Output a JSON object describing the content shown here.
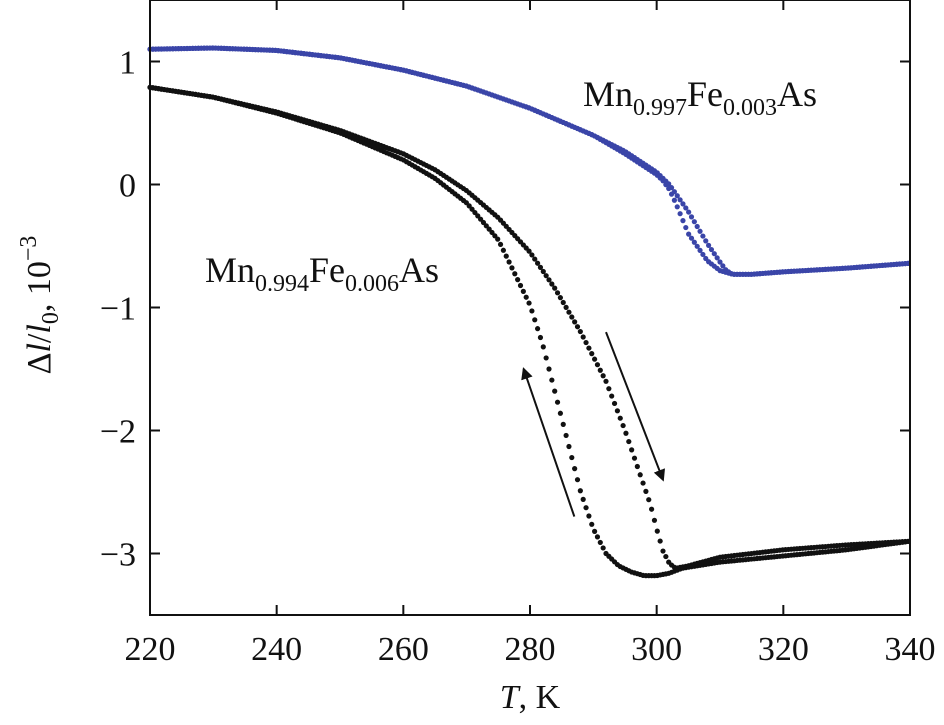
{
  "chart_data": {
    "type": "scatter",
    "xlabel_italic": "T",
    "xlabel_rest": ", K",
    "ylabel_parts": [
      "Δ",
      "l",
      "/",
      "l",
      "0",
      ", 10",
      "−3"
    ],
    "xlim": [
      220,
      340
    ],
    "ylim": [
      -3.5,
      1.5
    ],
    "xticks": [
      220,
      240,
      260,
      280,
      300,
      320,
      340
    ],
    "yticks": [
      1,
      0,
      -1,
      -2,
      -3
    ],
    "ytick_labels": [
      "1",
      "0",
      "−1",
      "−2",
      "−3"
    ],
    "grid": false,
    "colors": {
      "blue": "#3a45a8",
      "black": "#111111"
    },
    "series": [
      {
        "label_parts": [
          "Mn",
          "0.997",
          "Fe",
          "0.003",
          "As"
        ],
        "color": "#3a45a8",
        "branches": [
          {
            "x": [
              220,
              230,
              240,
              250,
              260,
              270,
              280,
              290,
              295,
              300,
              301,
              302,
              303,
              305,
              308,
              310,
              312,
              315,
              320,
              330,
              340
            ],
            "y": [
              1.1,
              1.11,
              1.09,
              1.03,
              0.93,
              0.8,
              0.62,
              0.4,
              0.25,
              0.08,
              0.03,
              -0.04,
              -0.15,
              -0.4,
              -0.62,
              -0.7,
              -0.73,
              -0.73,
              -0.71,
              -0.68,
              -0.64
            ]
          },
          {
            "x": [
              220,
              230,
              240,
              250,
              260,
              270,
              280,
              290,
              295,
              300,
              302,
              305,
              308,
              310,
              311,
              312,
              315,
              320,
              330,
              340
            ],
            "y": [
              1.1,
              1.11,
              1.09,
              1.03,
              0.93,
              0.8,
              0.62,
              0.4,
              0.27,
              0.1,
              0.0,
              -0.22,
              -0.48,
              -0.63,
              -0.7,
              -0.73,
              -0.73,
              -0.71,
              -0.68,
              -0.64
            ]
          }
        ]
      },
      {
        "label_parts": [
          "Mn",
          "0.994",
          "Fe",
          "0.006",
          "As"
        ],
        "color": "#111111",
        "branches": [
          {
            "x": [
              220,
              230,
              240,
              250,
              260,
              265,
              270,
              275,
              280,
              282,
              284,
              286,
              288,
              290,
              292,
              294,
              296,
              298,
              300,
              302,
              304,
              310,
              320,
              330,
              340
            ],
            "y": [
              0.79,
              0.71,
              0.58,
              0.42,
              0.2,
              0.05,
              -0.15,
              -0.45,
              -0.98,
              -1.3,
              -1.7,
              -2.1,
              -2.5,
              -2.8,
              -3.0,
              -3.1,
              -3.15,
              -3.18,
              -3.18,
              -3.16,
              -3.12,
              -3.07,
              -3.02,
              -2.97,
              -2.9
            ]
          },
          {
            "x": [
              220,
              230,
              240,
              250,
              260,
              265,
              270,
              275,
              280,
              284,
              288,
              292,
              295,
              297,
              299,
              300,
              301,
              302,
              303,
              305,
              310,
              320,
              330,
              340
            ],
            "y": [
              0.79,
              0.71,
              0.59,
              0.44,
              0.25,
              0.12,
              -0.05,
              -0.27,
              -0.55,
              -0.85,
              -1.2,
              -1.6,
              -2.0,
              -2.3,
              -2.6,
              -2.8,
              -2.98,
              -3.08,
              -3.12,
              -3.1,
              -3.03,
              -2.97,
              -2.93,
              -2.9
            ]
          }
        ]
      }
    ],
    "arrows": [
      {
        "from": [
          287,
          -2.7
        ],
        "to": [
          279,
          -1.5
        ]
      },
      {
        "from": [
          292,
          -1.2
        ],
        "to": [
          301,
          -2.4
        ]
      }
    ]
  }
}
